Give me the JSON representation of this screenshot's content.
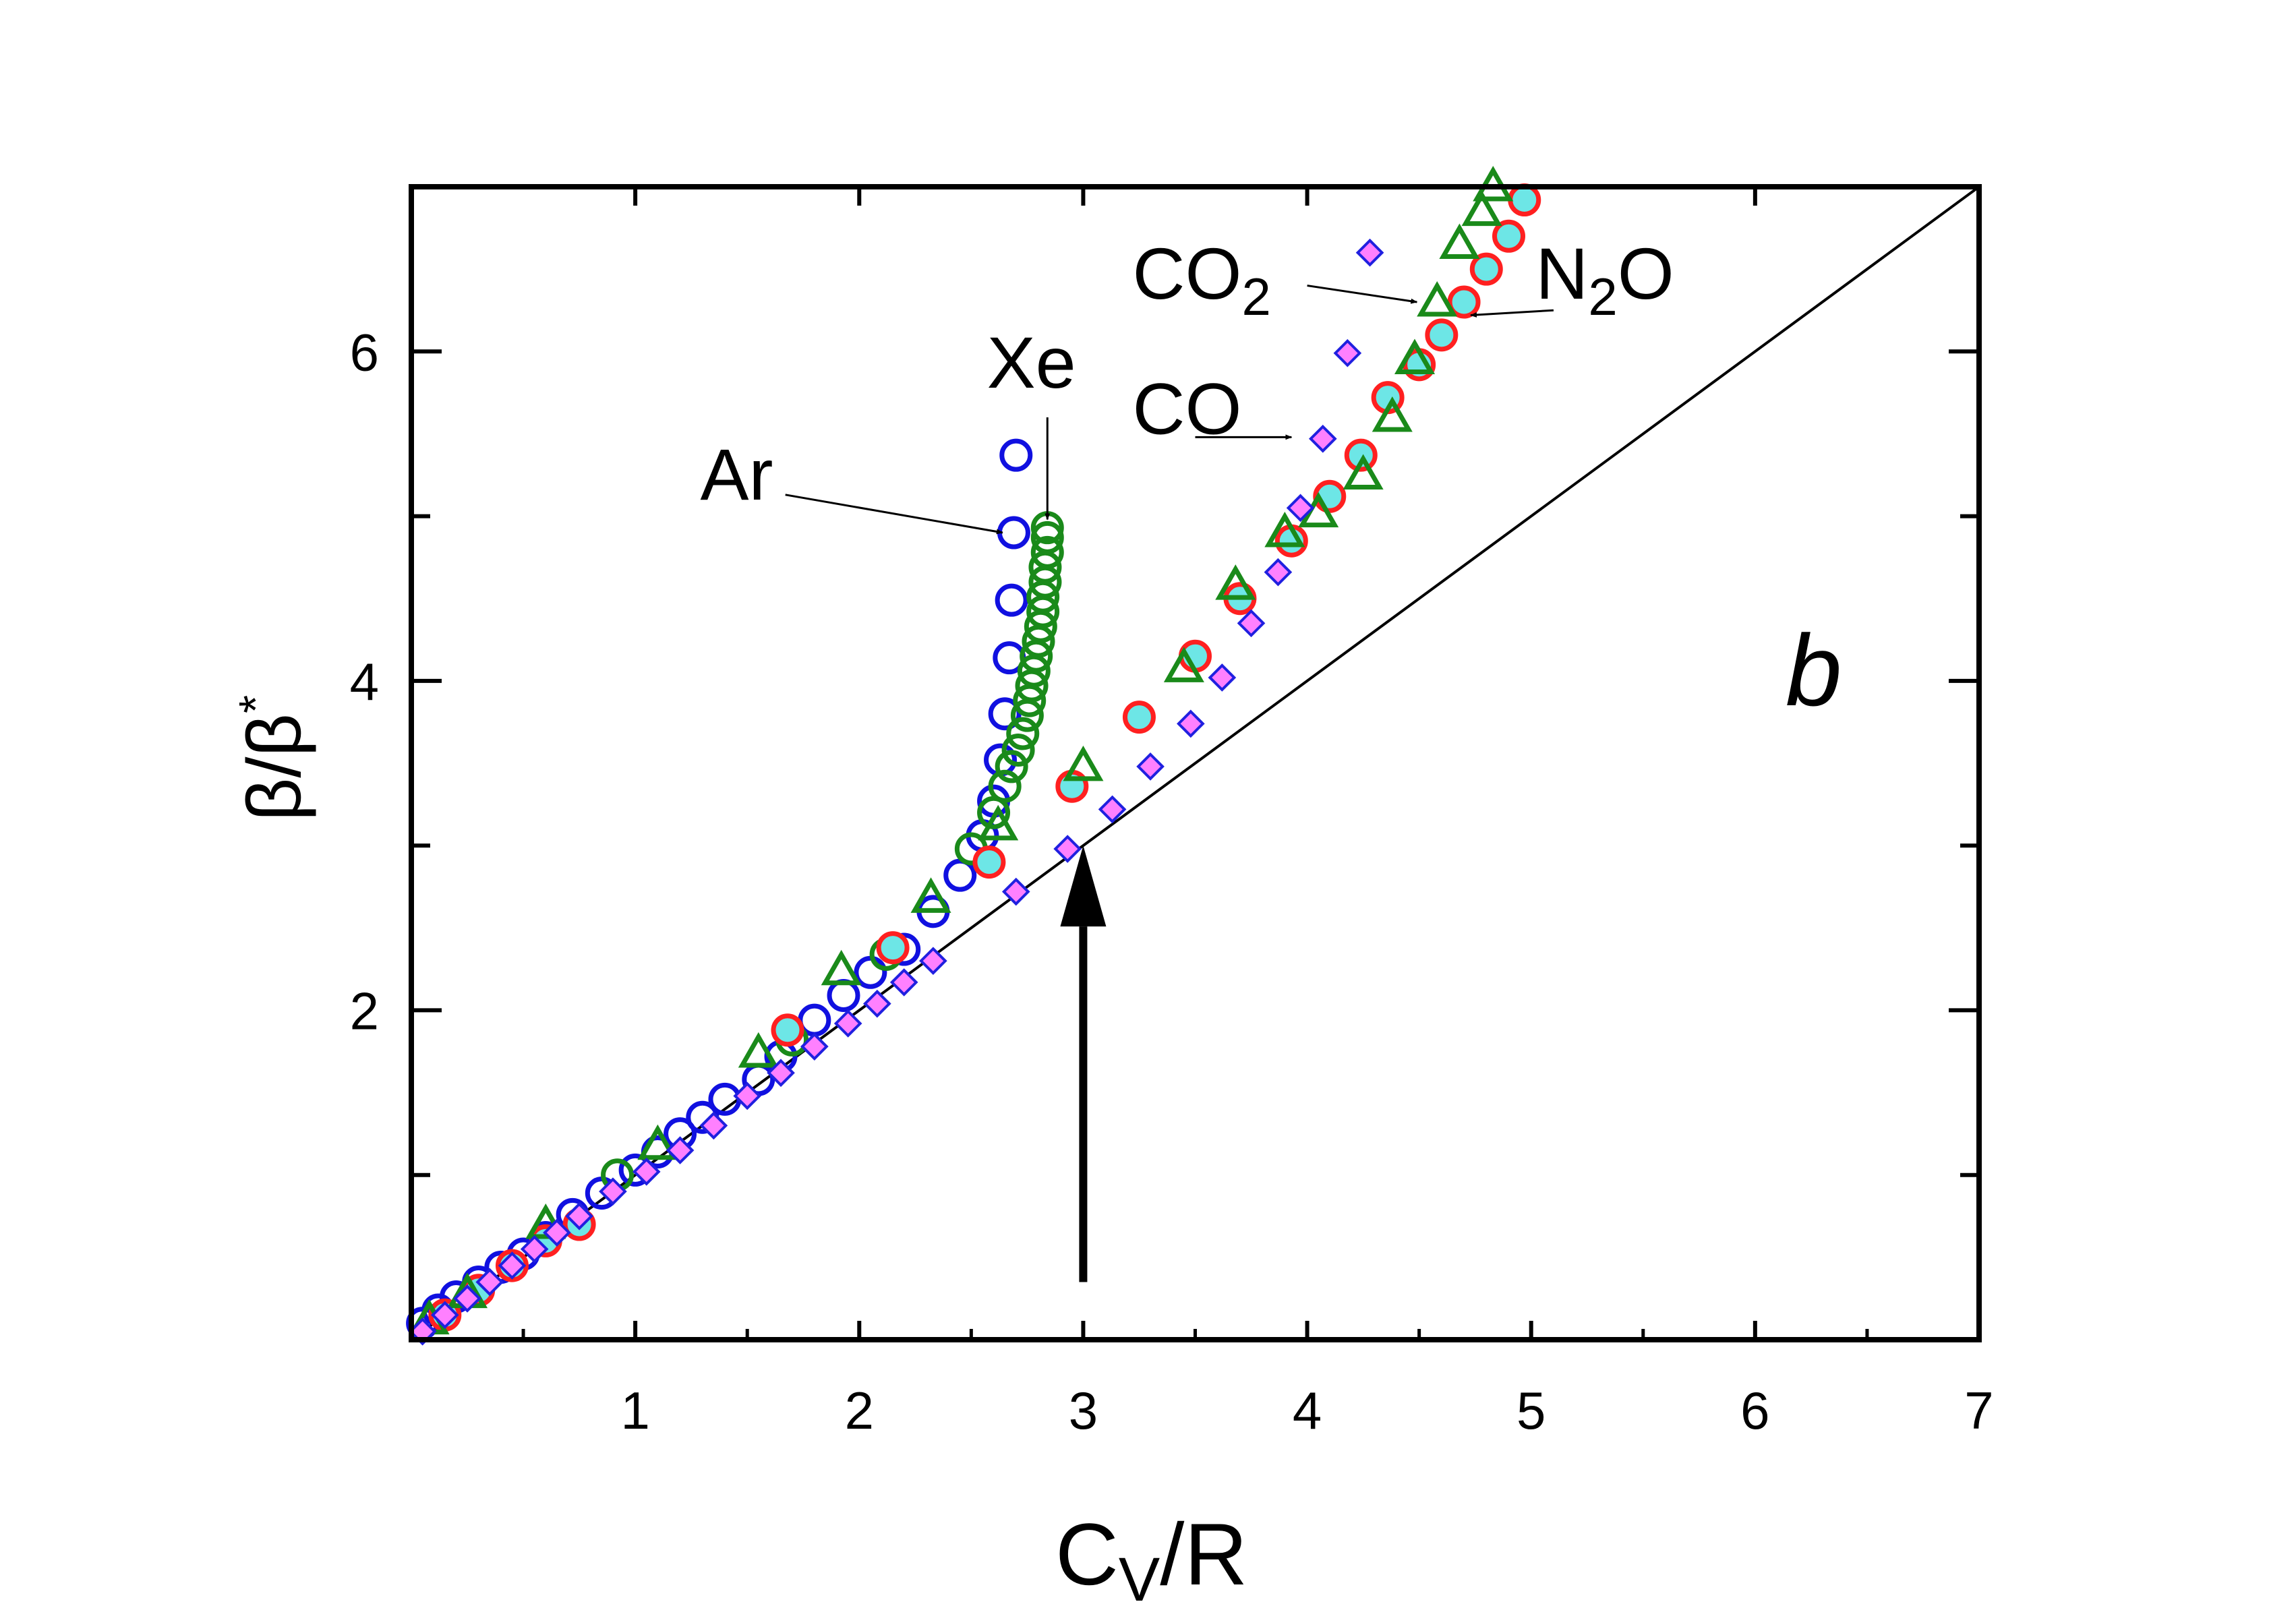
{
  "chart_data": {
    "type": "scatter",
    "panel_label": "b",
    "xlabel": {
      "main": "C",
      "sub": "V",
      "rest": "/R"
    },
    "ylabel": {
      "main": "β/β",
      "sup": "*"
    },
    "xlim": [
      0,
      7
    ],
    "ylim": [
      0,
      7
    ],
    "xticks": [
      1,
      2,
      3,
      4,
      5,
      6,
      7
    ],
    "yticks": [
      2,
      4,
      6
    ],
    "minor_yticks": [
      1,
      3,
      5
    ],
    "reference_line": {
      "x": [
        0,
        7
      ],
      "y": [
        0,
        7
      ]
    },
    "vertical_arrow": {
      "x": 3,
      "y_from": 0.35,
      "y_to": 3.0
    },
    "series": [
      {
        "name": "Ar",
        "marker": "circle-open",
        "color": "#1010e0",
        "x": [
          0.05,
          0.12,
          0.2,
          0.3,
          0.4,
          0.5,
          0.6,
          0.72,
          0.85,
          1.0,
          1.1,
          1.2,
          1.3,
          1.4,
          1.55,
          1.65,
          1.8,
          1.93,
          2.05,
          2.2,
          2.33,
          2.45,
          2.55,
          2.6,
          2.63,
          2.65,
          2.67,
          2.68,
          2.69,
          2.7
        ],
        "y": [
          0.1,
          0.18,
          0.26,
          0.35,
          0.44,
          0.52,
          0.62,
          0.76,
          0.89,
          1.03,
          1.14,
          1.25,
          1.35,
          1.46,
          1.58,
          1.72,
          1.94,
          2.09,
          2.23,
          2.37,
          2.6,
          2.82,
          3.06,
          3.27,
          3.52,
          3.8,
          4.14,
          4.49,
          4.9,
          5.37
        ]
      },
      {
        "name": "Xe",
        "marker": "circle-open",
        "color": "#1a8a1a",
        "x": [
          0.92,
          1.7,
          2.12,
          2.5,
          2.6,
          2.65,
          2.68,
          2.71,
          2.73,
          2.75,
          2.76,
          2.77,
          2.78,
          2.79,
          2.8,
          2.81,
          2.82,
          2.82,
          2.83,
          2.83,
          2.84,
          2.84,
          2.84
        ],
        "y": [
          1.0,
          1.82,
          2.34,
          2.98,
          3.2,
          3.36,
          3.48,
          3.58,
          3.68,
          3.79,
          3.88,
          3.97,
          4.06,
          4.15,
          4.24,
          4.33,
          4.42,
          4.51,
          4.6,
          4.69,
          4.78,
          4.87,
          4.93
        ]
      },
      {
        "name": "N2O",
        "marker": "circle-filled",
        "color": "#ff2020",
        "fill": "#6de6e6",
        "x": [
          0.15,
          0.3,
          0.45,
          0.6,
          0.75,
          1.68,
          2.15,
          2.58,
          2.95,
          3.25,
          3.5,
          3.7,
          3.93,
          4.1,
          4.24,
          4.36,
          4.5,
          4.6,
          4.7,
          4.8,
          4.9,
          4.97
        ],
        "y": [
          0.15,
          0.3,
          0.45,
          0.6,
          0.7,
          1.88,
          2.38,
          2.9,
          3.36,
          3.78,
          4.15,
          4.5,
          4.85,
          5.12,
          5.37,
          5.72,
          5.92,
          6.1,
          6.3,
          6.5,
          6.7,
          6.92
        ]
      },
      {
        "name": "CO2",
        "marker": "triangle-open",
        "color": "#1a8a1a",
        "x": [
          0.08,
          0.25,
          0.6,
          1.1,
          1.55,
          1.92,
          2.32,
          2.62,
          3.0,
          3.45,
          3.68,
          3.9,
          4.05,
          4.25,
          4.38,
          4.48,
          4.58,
          4.68,
          4.78,
          4.83
        ],
        "y": [
          0.12,
          0.28,
          0.7,
          1.18,
          1.74,
          2.24,
          2.68,
          3.12,
          3.48,
          4.08,
          4.58,
          4.9,
          5.02,
          5.25,
          5.6,
          5.95,
          6.3,
          6.65,
          6.85,
          7.0
        ],
        "show_from": 0
      },
      {
        "name": "CO",
        "marker": "diamond-filled",
        "color": "#2020e0",
        "fill": "#ff80ff",
        "x": [
          0.05,
          0.15,
          0.25,
          0.35,
          0.45,
          0.55,
          0.65,
          0.75,
          0.9,
          1.05,
          1.2,
          1.35,
          1.5,
          1.65,
          1.8,
          1.95,
          2.08,
          2.2,
          2.33,
          2.7,
          2.93,
          3.13,
          3.3,
          3.48,
          3.62,
          3.75,
          3.87,
          3.97,
          4.07,
          4.18,
          4.28
        ],
        "y": [
          0.05,
          0.15,
          0.25,
          0.35,
          0.45,
          0.55,
          0.65,
          0.75,
          0.9,
          1.02,
          1.15,
          1.3,
          1.48,
          1.62,
          1.78,
          1.92,
          2.04,
          2.17,
          2.3,
          2.72,
          2.98,
          3.22,
          3.48,
          3.74,
          4.02,
          4.35,
          4.66,
          5.05,
          5.47,
          5.99,
          6.6
        ]
      }
    ],
    "annotations": [
      {
        "label": "Ar",
        "sub": "",
        "rest": "",
        "text_at": [
          1.29,
          5.1
        ],
        "arrow_from": [
          1.67,
          5.13
        ],
        "arrow_to": [
          2.64,
          4.9
        ]
      },
      {
        "label": "Xe",
        "sub": "",
        "rest": "",
        "text_at": [
          2.57,
          5.78
        ],
        "arrow_from": [
          2.84,
          5.6
        ],
        "arrow_to": [
          2.84,
          4.98
        ]
      },
      {
        "label": "CO",
        "sub": "",
        "rest": "",
        "text_at": [
          3.22,
          5.5
        ],
        "arrow_from": [
          3.5,
          5.48
        ],
        "arrow_to": [
          3.93,
          5.48
        ]
      },
      {
        "label": "CO",
        "sub": "2",
        "rest": "",
        "text_at": [
          3.22,
          6.32
        ],
        "arrow_from": [
          4.0,
          6.4
        ],
        "arrow_to": [
          4.49,
          6.3
        ]
      },
      {
        "label": "N",
        "sub": "2",
        "rest": "O",
        "text_at": [
          5.02,
          6.32
        ],
        "arrow_from": [
          5.1,
          6.25
        ],
        "arrow_to": [
          4.73,
          6.22
        ]
      }
    ]
  }
}
